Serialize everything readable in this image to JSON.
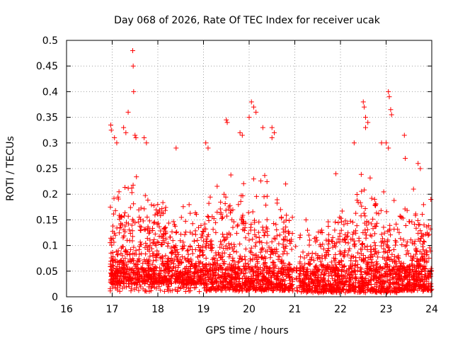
{
  "chart_data": {
    "type": "scatter",
    "title": "Day 068 of 2026, Rate Of TEC Index for receiver ucak",
    "xlabel": "GPS time / hours",
    "ylabel": "ROTI / TECUs",
    "xlim": [
      16,
      24
    ],
    "ylim": [
      0,
      0.5
    ],
    "x_ticks": [
      16,
      17,
      18,
      19,
      20,
      21,
      22,
      23,
      24
    ],
    "y_ticks": [
      0,
      0.05,
      0.1,
      0.15,
      0.2,
      0.25,
      0.3,
      0.35,
      0.4,
      0.45,
      0.5
    ],
    "x_tick_labels": [
      "16",
      "17",
      "18",
      "19",
      "20",
      "21",
      "22",
      "23",
      "24"
    ],
    "y_tick_labels": [
      "0",
      "0.05",
      "0.1",
      "0.15",
      "0.2",
      "0.25",
      "0.3",
      "0.35",
      "0.4",
      "0.45",
      "0.5"
    ],
    "grid": true,
    "marker": "+",
    "color": "#ff0000",
    "outliers": [
      [
        16.97,
        0.335
      ],
      [
        16.98,
        0.325
      ],
      [
        17.05,
        0.31
      ],
      [
        17.1,
        0.3
      ],
      [
        17.25,
        0.33
      ],
      [
        17.3,
        0.32
      ],
      [
        17.35,
        0.36
      ],
      [
        17.45,
        0.48
      ],
      [
        17.46,
        0.45
      ],
      [
        17.47,
        0.4
      ],
      [
        17.5,
        0.315
      ],
      [
        17.52,
        0.31
      ],
      [
        17.7,
        0.31
      ],
      [
        17.75,
        0.3
      ],
      [
        18.4,
        0.29
      ],
      [
        19.05,
        0.3
      ],
      [
        19.1,
        0.29
      ],
      [
        19.5,
        0.345
      ],
      [
        19.52,
        0.34
      ],
      [
        19.8,
        0.32
      ],
      [
        19.85,
        0.315
      ],
      [
        20.0,
        0.35
      ],
      [
        20.05,
        0.38
      ],
      [
        20.1,
        0.37
      ],
      [
        20.15,
        0.36
      ],
      [
        20.3,
        0.33
      ],
      [
        20.5,
        0.31
      ],
      [
        20.5,
        0.33
      ],
      [
        20.55,
        0.32
      ],
      [
        20.8,
        0.22
      ],
      [
        21.9,
        0.24
      ],
      [
        22.5,
        0.38
      ],
      [
        22.52,
        0.37
      ],
      [
        22.55,
        0.35
      ],
      [
        22.6,
        0.34
      ],
      [
        22.55,
        0.33
      ],
      [
        22.3,
        0.3
      ],
      [
        22.9,
        0.3
      ],
      [
        23.05,
        0.4
      ],
      [
        23.07,
        0.39
      ],
      [
        23.1,
        0.365
      ],
      [
        23.12,
        0.355
      ],
      [
        23.0,
        0.3
      ],
      [
        23.05,
        0.29
      ],
      [
        23.4,
        0.315
      ],
      [
        23.42,
        0.27
      ],
      [
        23.7,
        0.26
      ],
      [
        23.75,
        0.25
      ],
      [
        23.6,
        0.21
      ],
      [
        23.98,
        0.19
      ]
    ],
    "envelope": [
      [
        16.95,
        0.21
      ],
      [
        17.2,
        0.24
      ],
      [
        17.5,
        0.25
      ],
      [
        17.8,
        0.22
      ],
      [
        18.1,
        0.19
      ],
      [
        18.5,
        0.21
      ],
      [
        18.9,
        0.18
      ],
      [
        19.3,
        0.22
      ],
      [
        19.6,
        0.25
      ],
      [
        19.9,
        0.24
      ],
      [
        20.2,
        0.25
      ],
      [
        20.5,
        0.22
      ],
      [
        20.8,
        0.2
      ],
      [
        21.05,
        0.15
      ],
      [
        21.1,
        0.16
      ],
      [
        21.5,
        0.15
      ],
      [
        22.0,
        0.18
      ],
      [
        22.5,
        0.25
      ],
      [
        22.9,
        0.2
      ],
      [
        23.2,
        0.19
      ],
      [
        23.5,
        0.17
      ],
      [
        23.8,
        0.19
      ],
      [
        24.0,
        0.17
      ]
    ]
  }
}
